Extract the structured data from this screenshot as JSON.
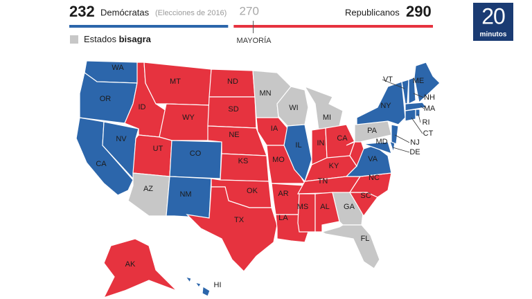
{
  "header": {
    "dem_votes": 232,
    "dem_label": "Demócratas",
    "note": "(Elecciones de 2016)",
    "majority": 270,
    "majority_label": "MAYORÍA",
    "rep_label": "Republicanos",
    "rep_votes": 290
  },
  "legend": {
    "label": "Estados",
    "label_bold": "bisagra"
  },
  "logo": {
    "number": "20",
    "word": "minutos"
  },
  "colors": {
    "dem": "#2c66ab",
    "rep": "#e6333f",
    "swing": "#c7c7c7"
  },
  "states": [
    {
      "label": "WA",
      "winner": "dem"
    },
    {
      "label": "OR",
      "winner": "dem"
    },
    {
      "label": "CA",
      "winner": "dem"
    },
    {
      "label": "NV",
      "winner": "dem"
    },
    {
      "label": "ID",
      "winner": "rep"
    },
    {
      "label": "MT",
      "winner": "rep"
    },
    {
      "label": "WY",
      "winner": "rep"
    },
    {
      "label": "UT",
      "winner": "rep"
    },
    {
      "label": "CO",
      "winner": "dem"
    },
    {
      "label": "AZ",
      "winner": "swing"
    },
    {
      "label": "NM",
      "winner": "dem"
    },
    {
      "label": "ND",
      "winner": "rep"
    },
    {
      "label": "SD",
      "winner": "rep"
    },
    {
      "label": "NE",
      "winner": "rep"
    },
    {
      "label": "KS",
      "winner": "rep"
    },
    {
      "label": "OK",
      "winner": "rep"
    },
    {
      "label": "TX",
      "winner": "rep"
    },
    {
      "label": "MN",
      "winner": "swing"
    },
    {
      "label": "IA",
      "winner": "rep"
    },
    {
      "label": "MO",
      "winner": "rep"
    },
    {
      "label": "AR",
      "winner": "rep"
    },
    {
      "label": "LA",
      "winner": "rep"
    },
    {
      "label": "WI",
      "winner": "swing"
    },
    {
      "label": "IL",
      "winner": "dem"
    },
    {
      "label": "MI",
      "winner": "swing"
    },
    {
      "label": "IN",
      "winner": "rep"
    },
    {
      "label": "CA",
      "winner": "rep"
    },
    {
      "label": "KY",
      "winner": "rep"
    },
    {
      "label": "TN",
      "winner": "rep"
    },
    {
      "label": "MS",
      "winner": "rep"
    },
    {
      "label": "AL",
      "winner": "rep"
    },
    {
      "label": "GA",
      "winner": "swing"
    },
    {
      "label": "FL",
      "winner": "swing"
    },
    {
      "label": "SC",
      "winner": "rep"
    },
    {
      "label": "NC",
      "winner": "rep"
    },
    {
      "label": "VA",
      "winner": "dem"
    },
    {
      "label": null,
      "winner": "rep"
    },
    {
      "label": "PA",
      "winner": "swing"
    },
    {
      "label": "NY",
      "winner": "dem"
    },
    {
      "label": "MD",
      "winner": "dem"
    },
    {
      "label": "DE",
      "winner": "dem"
    },
    {
      "label": "NJ",
      "winner": "dem"
    },
    {
      "label": "VT",
      "winner": "dem"
    },
    {
      "label": "NH",
      "winner": "dem"
    },
    {
      "label": "ME",
      "winner": "dem"
    },
    {
      "label": "MA",
      "winner": "dem"
    },
    {
      "label": "CT",
      "winner": "dem"
    },
    {
      "label": "RI",
      "winner": "dem"
    },
    {
      "label": "AK",
      "winner": "rep"
    },
    {
      "label": "HI",
      "winner": "dem"
    }
  ]
}
